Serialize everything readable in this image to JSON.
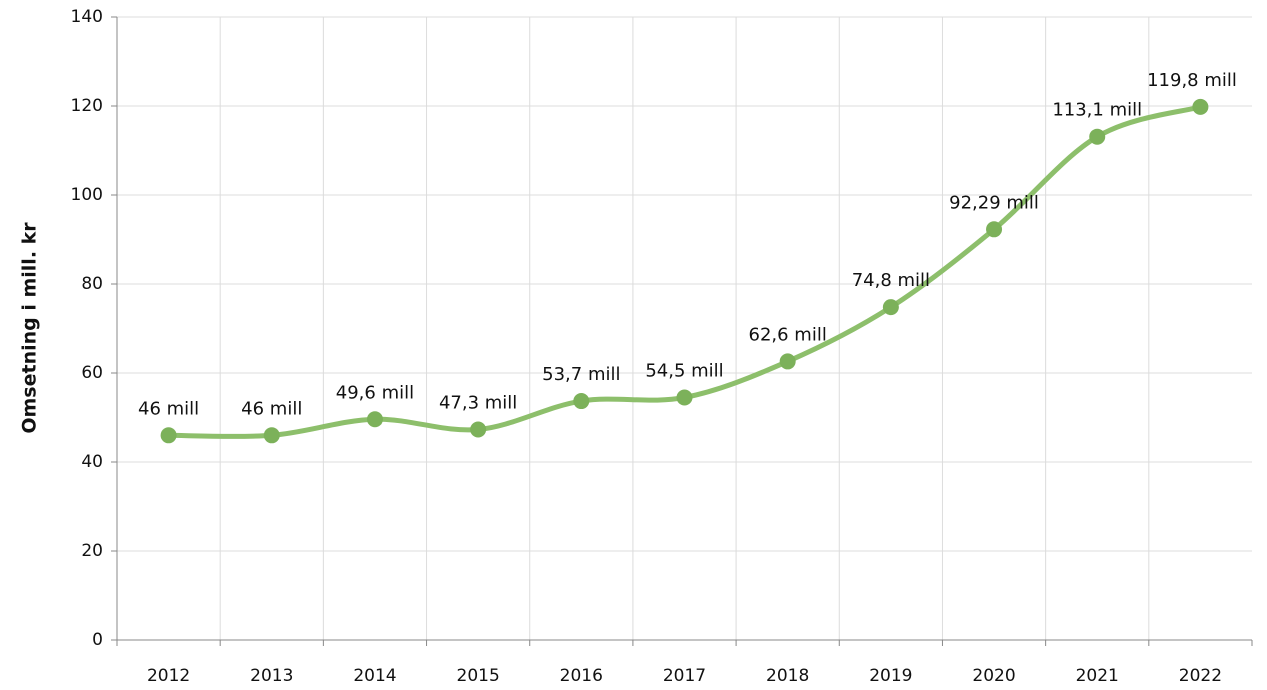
{
  "chart_data": {
    "type": "line",
    "y_label": "Omsetning i mill. kr",
    "categories": [
      "2012",
      "2013",
      "2014",
      "2015",
      "2016",
      "2017",
      "2018",
      "2019",
      "2020",
      "2021",
      "2022"
    ],
    "series": [
      {
        "color": "#8dbf6b",
        "marker_color": "#7cb15a",
        "values": [
          46,
          46,
          49.6,
          47.3,
          53.7,
          54.5,
          62.6,
          74.8,
          92.29,
          113.1,
          119.8
        ],
        "value_labels": [
          "46 mill",
          "46 mill",
          "49,6 mill",
          "47,3 mill",
          "53,7 mill",
          "54,5 mill",
          "62,6 mill",
          "74,8 mill",
          "92,29 mill",
          "113,1 mill",
          "119,8 mill"
        ]
      }
    ],
    "ylim": [
      0,
      140
    ],
    "yticks": [
      0,
      20,
      40,
      60,
      80,
      100,
      120,
      140
    ],
    "grid": true,
    "smooth": true
  }
}
